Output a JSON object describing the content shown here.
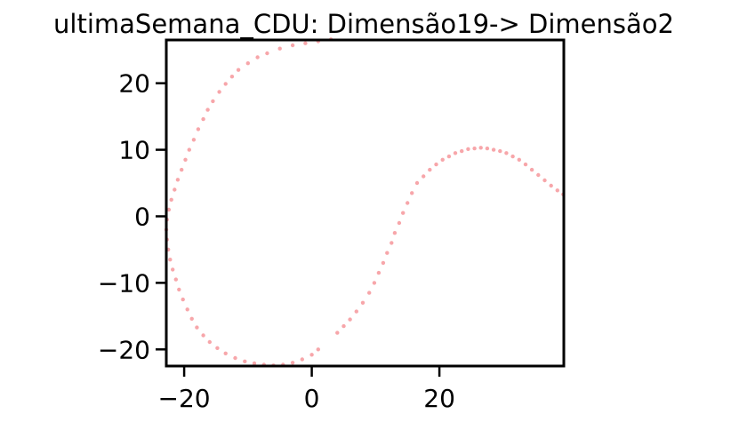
{
  "chart_data": {
    "type": "scatter",
    "title": "ultimaSemana_CDU: Dimensão19-> Dimensão2",
    "xlabel": "",
    "ylabel": "",
    "xlim": [
      -22.8,
      39.5
    ],
    "ylim": [
      -22.5,
      26.5
    ],
    "xticks": [
      -20,
      0,
      20
    ],
    "yticks": [
      -20,
      -10,
      0,
      10,
      20
    ],
    "xtick_labels": [
      "−20",
      "0",
      "20"
    ],
    "ytick_labels": [
      "−20",
      "−10",
      "0",
      "10",
      "20"
    ],
    "grid": false,
    "legend": "none",
    "marker_color": "#e8000b",
    "marker_alpha": 0.35,
    "series": [
      {
        "points": [
          [
            3.0,
            26.6
          ],
          [
            1.0,
            26.3
          ],
          [
            -1.0,
            26.0
          ],
          [
            -3.0,
            25.7
          ],
          [
            -5.0,
            25.2
          ],
          [
            -7.0,
            24.5
          ],
          [
            -8.5,
            23.9
          ],
          [
            -10.0,
            23.0
          ],
          [
            -11.5,
            22.0
          ],
          [
            -12.5,
            21.0
          ],
          [
            -13.5,
            19.9
          ],
          [
            -14.5,
            18.7
          ],
          [
            -15.5,
            17.3
          ],
          [
            -16.3,
            16.0
          ],
          [
            -17.0,
            14.6
          ],
          [
            -17.8,
            13.1
          ],
          [
            -18.5,
            11.5
          ],
          [
            -19.2,
            10.0
          ],
          [
            -19.8,
            8.5
          ],
          [
            -20.4,
            7.0
          ],
          [
            -21.0,
            5.5
          ],
          [
            -21.5,
            4.0
          ],
          [
            -22.0,
            2.5
          ],
          [
            -22.4,
            1.0
          ],
          [
            -22.7,
            -0.5
          ],
          [
            -22.8,
            -2.0
          ],
          [
            -22.7,
            -3.5
          ],
          [
            -22.5,
            -5.0
          ],
          [
            -22.2,
            -6.5
          ],
          [
            -21.8,
            -8.0
          ],
          [
            -21.3,
            -9.5
          ],
          [
            -20.8,
            -11.0
          ],
          [
            -20.2,
            -12.5
          ],
          [
            -19.5,
            -14.0
          ],
          [
            -18.8,
            -15.4
          ],
          [
            -18.0,
            -16.7
          ],
          [
            -17.0,
            -17.9
          ],
          [
            -16.0,
            -18.9
          ],
          [
            -14.8,
            -19.8
          ],
          [
            -13.5,
            -20.6
          ],
          [
            -12.0,
            -21.3
          ],
          [
            -10.5,
            -21.8
          ],
          [
            -9.0,
            -22.1
          ],
          [
            -7.5,
            -22.3
          ],
          [
            -6.0,
            -22.4
          ],
          [
            -4.5,
            -22.3
          ],
          [
            -3.0,
            -22.0
          ],
          [
            -1.5,
            -21.5
          ],
          [
            0.0,
            -20.8
          ],
          [
            1.0,
            -20.0
          ],
          [
            4.0,
            -17.5
          ],
          [
            5.0,
            -16.5
          ],
          [
            6.0,
            -15.5
          ],
          [
            7.0,
            -14.3
          ],
          [
            8.0,
            -13.0
          ],
          [
            9.0,
            -11.5
          ],
          [
            9.8,
            -10.0
          ],
          [
            10.5,
            -8.5
          ],
          [
            11.2,
            -7.0
          ],
          [
            11.8,
            -5.5
          ],
          [
            12.5,
            -4.0
          ],
          [
            13.0,
            -2.5
          ],
          [
            13.7,
            -1.0
          ],
          [
            14.3,
            0.5
          ],
          [
            15.0,
            2.0
          ],
          [
            15.7,
            3.5
          ],
          [
            16.5,
            5.0
          ],
          [
            17.5,
            6.0
          ],
          [
            18.5,
            7.0
          ],
          [
            19.5,
            7.8
          ],
          [
            20.5,
            8.5
          ],
          [
            21.5,
            9.0
          ],
          [
            22.5,
            9.5
          ],
          [
            23.5,
            9.8
          ],
          [
            24.5,
            10.1
          ],
          [
            25.5,
            10.2
          ],
          [
            26.5,
            10.3
          ],
          [
            27.5,
            10.2
          ],
          [
            28.5,
            10.0
          ],
          [
            29.5,
            9.8
          ],
          [
            30.5,
            9.5
          ],
          [
            31.5,
            9.0
          ],
          [
            32.5,
            8.5
          ],
          [
            33.5,
            7.8
          ],
          [
            34.5,
            7.0
          ],
          [
            35.5,
            6.2
          ],
          [
            36.5,
            5.4
          ],
          [
            37.5,
            4.6
          ],
          [
            38.5,
            3.9
          ],
          [
            39.4,
            3.3
          ]
        ]
      }
    ]
  }
}
